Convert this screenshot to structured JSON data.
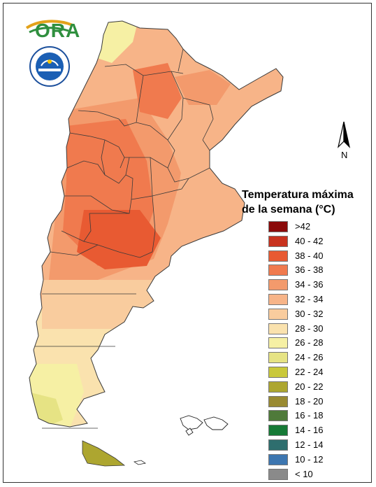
{
  "logos": {
    "ora_text": "ORA",
    "seal_icon": "smn-seal-icon"
  },
  "north_arrow": {
    "label": "N",
    "icon": "north-arrow-icon"
  },
  "legend": {
    "title_line1": "Temperatura máxima",
    "title_line2": "de la semana (°C)",
    "items": [
      {
        "label": ">42",
        "color": "#8b0a0a"
      },
      {
        "label": "40 - 42",
        "color": "#c8321e"
      },
      {
        "label": "38 - 40",
        "color": "#e85a32"
      },
      {
        "label": "36 - 38",
        "color": "#f07a4e"
      },
      {
        "label": "34 - 36",
        "color": "#f39a6c"
      },
      {
        "label": "32 - 34",
        "color": "#f7b488"
      },
      {
        "label": "30 - 32",
        "color": "#f9cc9e"
      },
      {
        "label": "28 - 30",
        "color": "#fae2ae"
      },
      {
        "label": "26 - 28",
        "color": "#f6f0a4"
      },
      {
        "label": "24 - 26",
        "color": "#e6e384"
      },
      {
        "label": "22 - 24",
        "color": "#c9c83a"
      },
      {
        "label": "20 - 22",
        "color": "#ada630"
      },
      {
        "label": "18 - 20",
        "color": "#998a32"
      },
      {
        "label": "16 - 18",
        "color": "#4f7a3a"
      },
      {
        "label": "14 - 16",
        "color": "#167a36"
      },
      {
        "label": "12 - 14",
        "color": "#2e6e6e"
      },
      {
        "label": "10 - 12",
        "color": "#3d76b0"
      },
      {
        "label": "< 10",
        "color": "#8a8a8a"
      }
    ]
  }
}
